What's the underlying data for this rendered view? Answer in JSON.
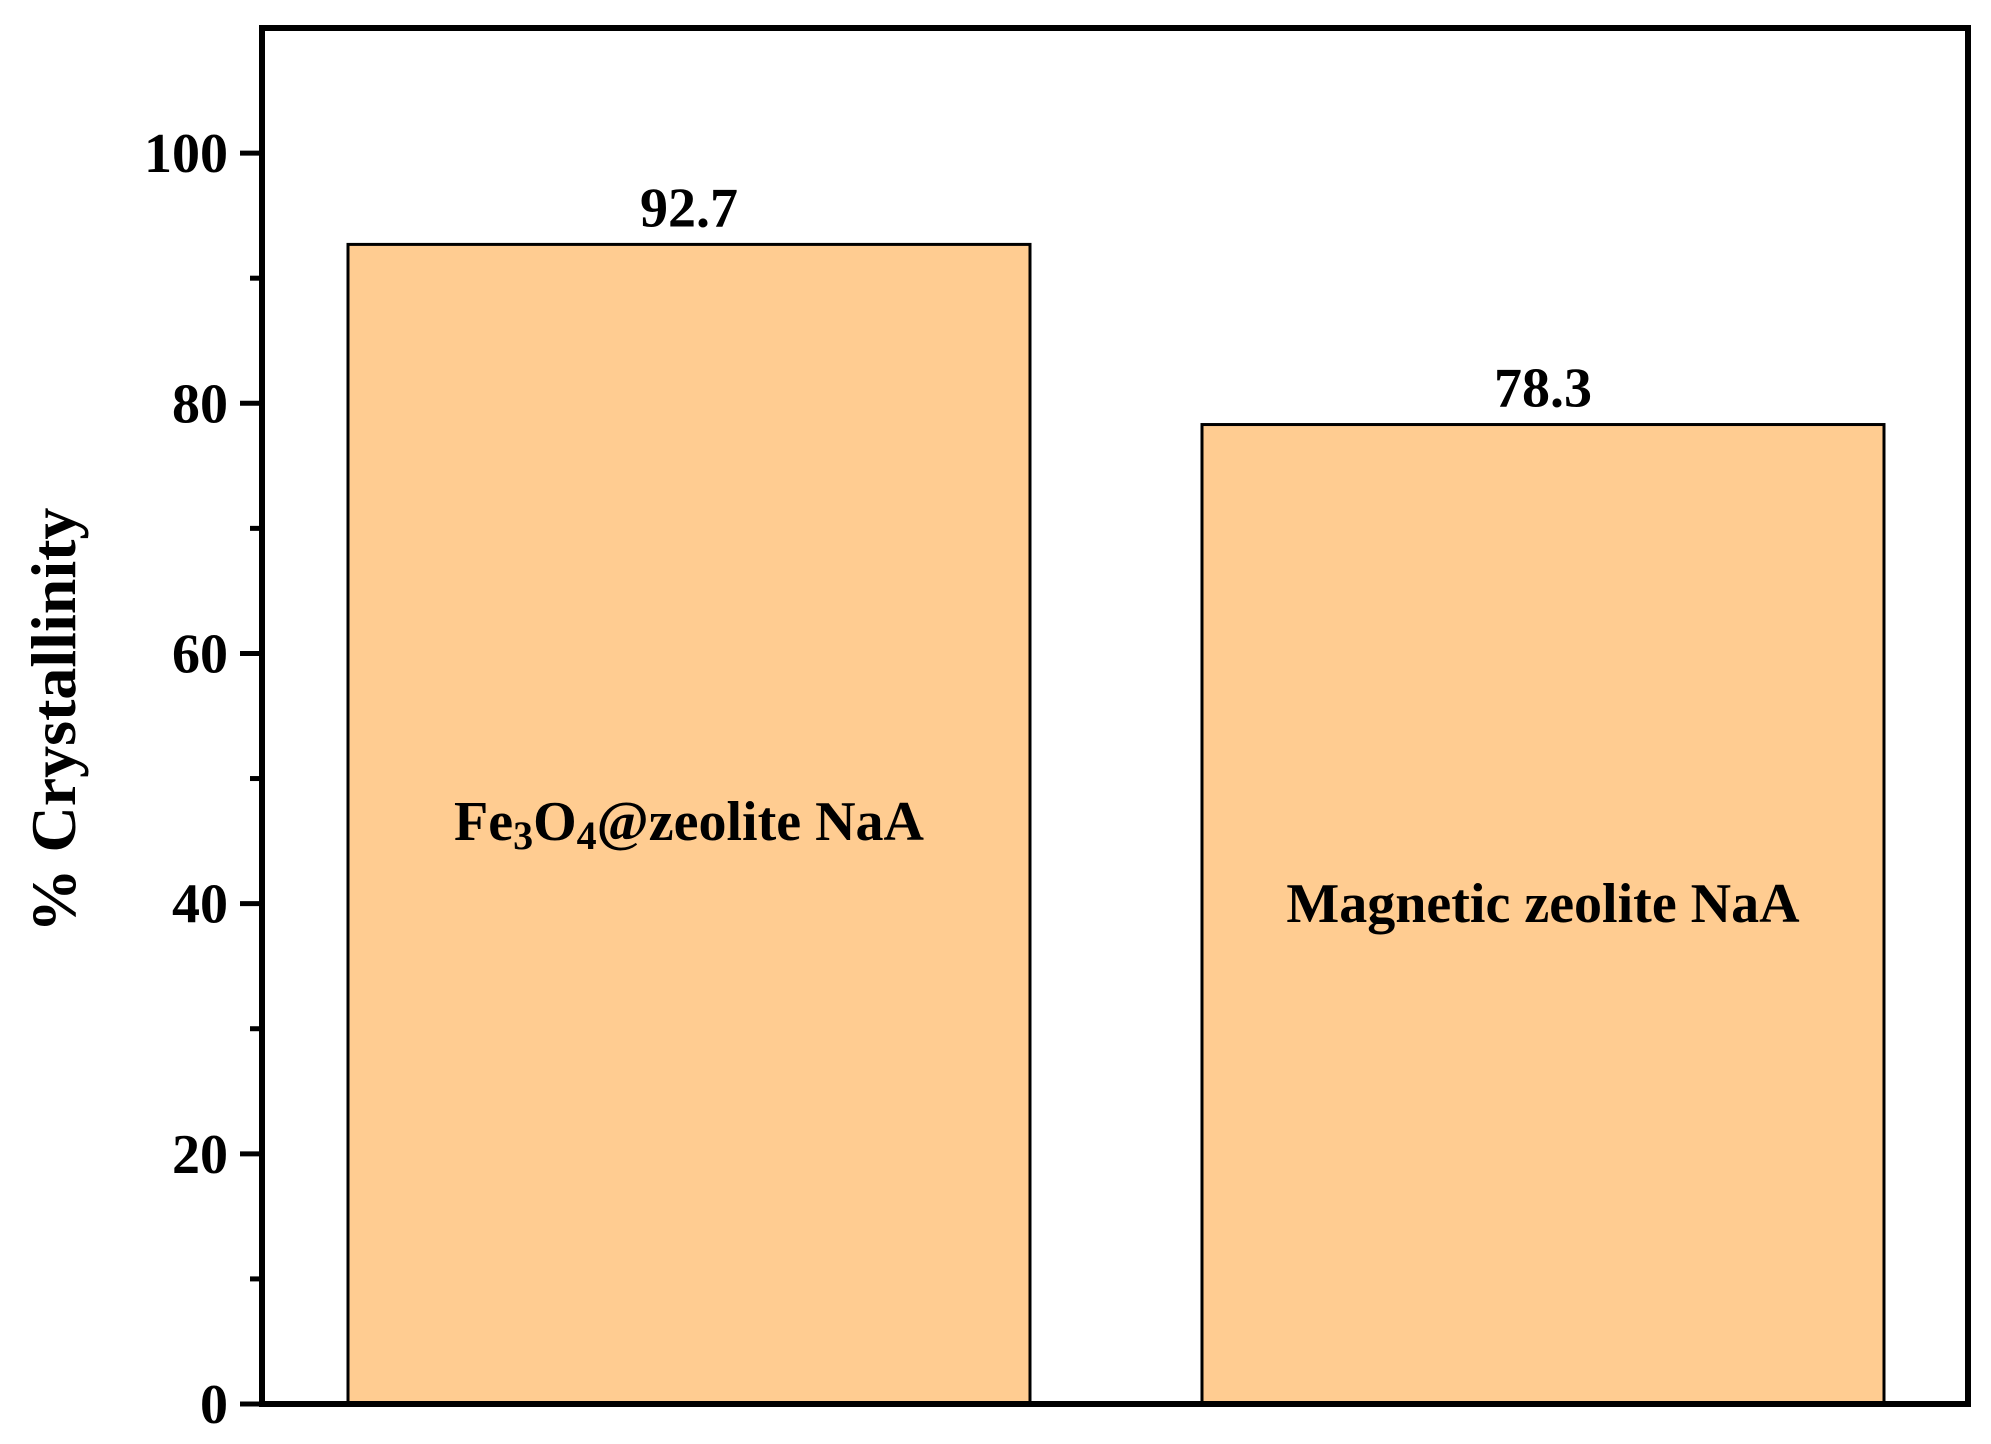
{
  "chart_data": {
    "type": "bar",
    "categories": [
      "Fe3O4@zeolite NaA",
      "Magnetic zeolite NaA"
    ],
    "category_display": [
      [
        {
          "t": "Fe"
        },
        {
          "t": "3",
          "sub": true
        },
        {
          "t": "O"
        },
        {
          "t": "4",
          "sub": true
        },
        {
          "t": "@zeolite NaA"
        }
      ],
      [
        {
          "t": "Magnetic zeolite NaA"
        }
      ]
    ],
    "values": [
      92.7,
      78.3
    ],
    "value_labels": [
      "92.7",
      "78.3"
    ],
    "title": "",
    "xlabel": "",
    "ylabel": "% Crystallinity",
    "ylim": [
      0,
      110
    ],
    "yticks": [
      0,
      20,
      40,
      60,
      80,
      100
    ],
    "ytick_labels": [
      "0",
      "20",
      "40",
      "60",
      "80",
      "100"
    ],
    "grid": false,
    "legend": "none",
    "bar_color": "#FFCC91",
    "bar_edge_color": "#000000"
  }
}
